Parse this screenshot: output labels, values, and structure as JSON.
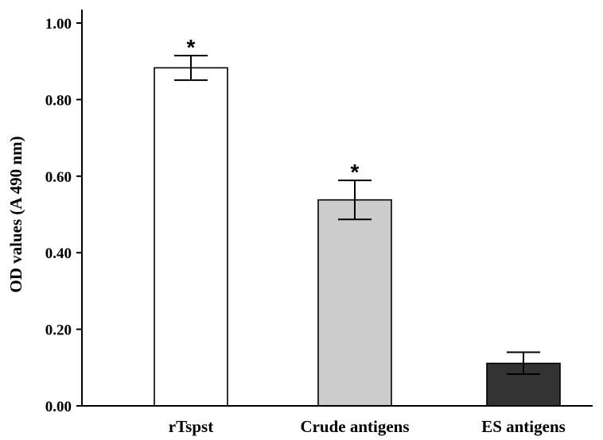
{
  "chart_data": {
    "type": "bar",
    "title": "",
    "xlabel": "",
    "ylabel": "OD values (A 490 nm)",
    "ylim": [
      0,
      1.0
    ],
    "yticks": [
      "0.00",
      "0.20",
      "0.40",
      "0.60",
      "0.80",
      "1.00"
    ],
    "categories": [
      "rTspst",
      "Crude antigens",
      "ES antigens"
    ],
    "values": [
      0.883,
      0.538,
      0.111
    ],
    "error_low": [
      0.851,
      0.487,
      0.083
    ],
    "error_high": [
      0.915,
      0.589,
      0.14
    ],
    "significance": [
      "*",
      "*",
      ""
    ],
    "bar_colors": [
      "#ffffff",
      "#cccccc",
      "#333333"
    ],
    "grid": false,
    "legend": "none"
  }
}
